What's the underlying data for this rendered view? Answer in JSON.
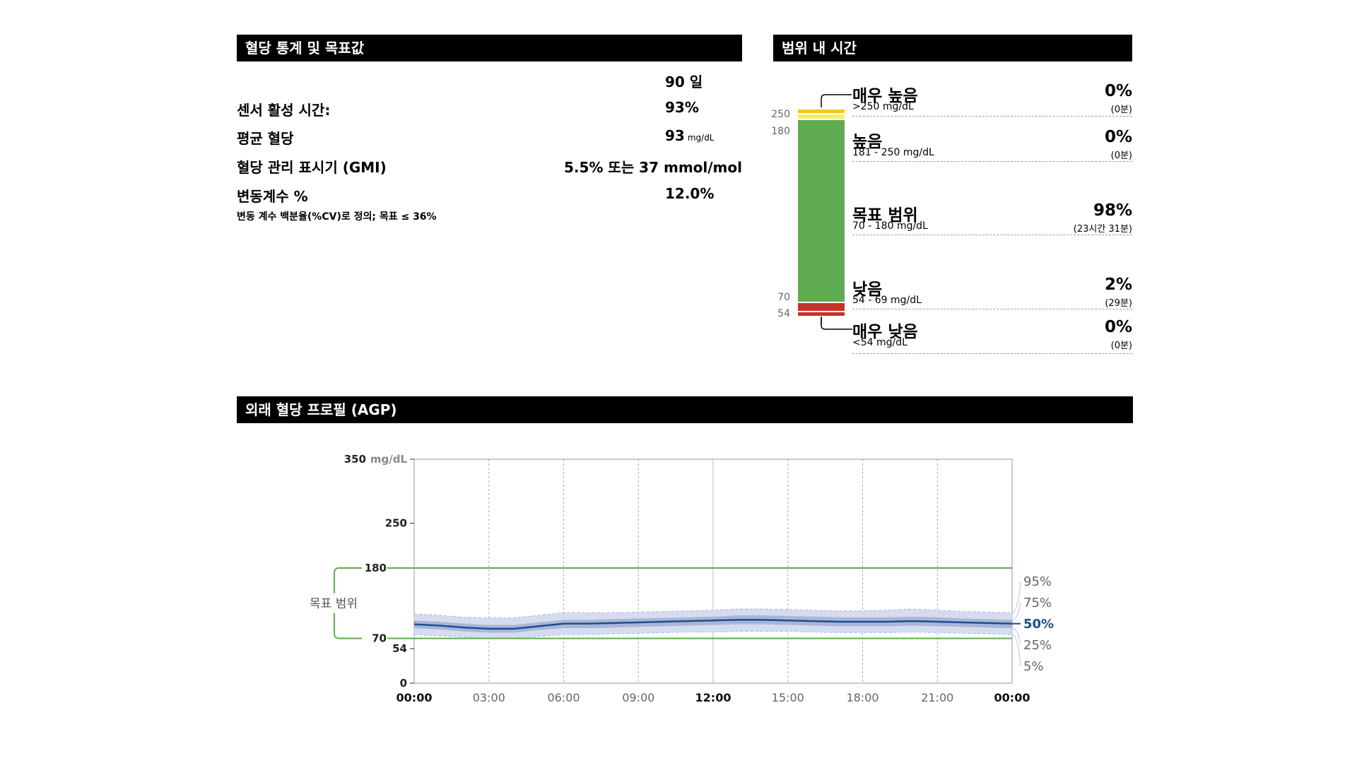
{
  "stats": {
    "title": "혈당 통계 및 목표값",
    "period": "90 일",
    "rows": [
      {
        "label": "센서 활성 시간:",
        "value": "93%",
        "unit": ""
      },
      {
        "label": "평균 혈당",
        "value": "93",
        "unit": "mg/dL"
      },
      {
        "label": "혈당 관리 표시기 (GMI)",
        "value": "5.5% 또는 37 mmol/mol",
        "unit": ""
      },
      {
        "label": "변동계수 %",
        "value": "12.0%",
        "unit": ""
      }
    ],
    "note": "변동 계수 백분율(%CV)로 정의; 목표 ≤ 36%"
  },
  "tir": {
    "title": "범위 내 시간",
    "scale_ticks": [
      "250",
      "180",
      "70",
      "54"
    ],
    "rows": [
      {
        "name": "매우 높음",
        "range": ">250 mg/dL",
        "pct": "0%",
        "dur": "(0분)",
        "color": "#f2c71b",
        "fraction": 0.0
      },
      {
        "name": "높음",
        "range": "181 - 250 mg/dL",
        "pct": "0%",
        "dur": "(0분)",
        "color": "#f7ec6a",
        "fraction": 0.0
      },
      {
        "name": "목표 범위",
        "range": "70 - 180 mg/dL",
        "pct": "98%",
        "dur": "(23시간 31분)",
        "color": "#5fab52",
        "fraction": 0.98
      },
      {
        "name": "낮음",
        "range": "54 - 69 mg/dL",
        "pct": "2%",
        "dur": "(29분)",
        "color": "#c8302a",
        "fraction": 0.02
      },
      {
        "name": "매우 낮음",
        "range": "<54 mg/dL",
        "pct": "0%",
        "dur": "(0분)",
        "color": "#9b1c1c",
        "fraction": 0.0
      }
    ]
  },
  "agp": {
    "title": "외래 혈당 프로필 (AGP)",
    "target_label": "목표 범위",
    "y_unit": "mg/dL",
    "colors": {
      "median": "#1f4e8c",
      "iqr": "#a9b6d8",
      "outer": "#d6dcef",
      "target": "#5fab52"
    }
  },
  "chart_data": {
    "type": "area",
    "title": "외래 혈당 프로필 (AGP)",
    "ylim": [
      0,
      350
    ],
    "y_ticks": [
      0,
      54,
      70,
      180,
      250,
      350
    ],
    "y_tick_labels": [
      "0",
      "54",
      "70",
      "180",
      "250",
      "350"
    ],
    "x_tick_labels": [
      "00:00",
      "03:00",
      "06:00",
      "09:00",
      "12:00",
      "15:00",
      "18:00",
      "21:00",
      "00:00"
    ],
    "x_hours": [
      0,
      1,
      2,
      3,
      4,
      5,
      6,
      7,
      8,
      9,
      10,
      11,
      12,
      13,
      14,
      15,
      16,
      17,
      18,
      19,
      20,
      21,
      22,
      23,
      24
    ],
    "target_range": [
      70,
      180
    ],
    "percentile_labels": [
      "95%",
      "75%",
      "50%",
      "25%",
      "5%"
    ],
    "series": [
      {
        "name": "95%",
        "values": [
          108,
          106,
          103,
          102,
          102,
          106,
          110,
          110,
          110,
          111,
          112,
          113,
          114,
          116,
          116,
          115,
          114,
          113,
          113,
          114,
          116,
          114,
          112,
          111,
          110
        ]
      },
      {
        "name": "75%",
        "values": [
          98,
          96,
          93,
          91,
          91,
          95,
          99,
          99,
          100,
          101,
          102,
          103,
          104,
          106,
          106,
          105,
          104,
          103,
          103,
          103,
          104,
          103,
          101,
          100,
          99
        ]
      },
      {
        "name": "50%",
        "values": [
          92,
          90,
          87,
          85,
          85,
          89,
          93,
          93,
          94,
          95,
          96,
          97,
          98,
          99,
          99,
          98,
          97,
          96,
          96,
          96,
          97,
          96,
          95,
          94,
          93
        ]
      },
      {
        "name": "25%",
        "values": [
          86,
          84,
          81,
          79,
          79,
          83,
          86,
          86,
          87,
          88,
          89,
          90,
          91,
          92,
          92,
          91,
          90,
          89,
          89,
          89,
          90,
          89,
          88,
          87,
          86
        ]
      },
      {
        "name": "5%",
        "values": [
          76,
          74,
          72,
          70,
          70,
          73,
          76,
          76,
          77,
          78,
          79,
          80,
          80,
          81,
          81,
          81,
          80,
          79,
          79,
          79,
          80,
          79,
          78,
          77,
          76
        ]
      }
    ]
  }
}
